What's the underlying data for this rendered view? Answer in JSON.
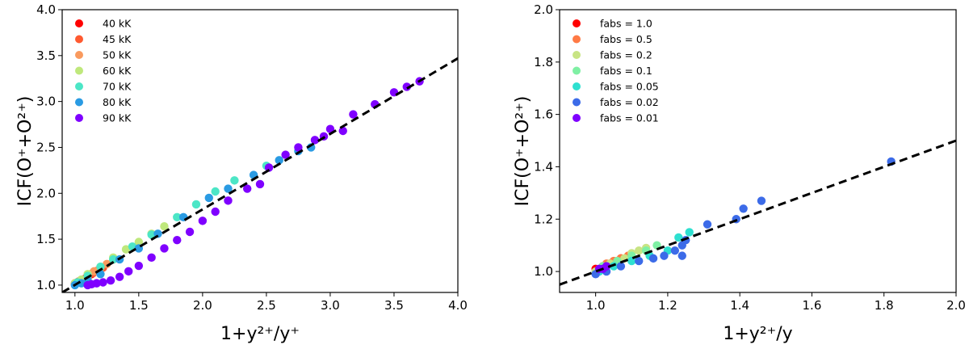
{
  "chart_data": [
    {
      "type": "scatter",
      "xlabel": "1+y²⁺/y⁺",
      "ylabel": "ICF(O⁺+O²⁺)",
      "xlim": [
        0.9,
        4.0
      ],
      "ylim": [
        0.92,
        4.0
      ],
      "xticks": [
        "1.0",
        "1.5",
        "2.0",
        "2.5",
        "3.0",
        "3.5",
        "4.0"
      ],
      "yticks": [
        "1.0",
        "1.5",
        "2.0",
        "2.5",
        "3.0",
        "3.5",
        "4.0"
      ],
      "grid": false,
      "legend_position": "top-left",
      "fit_line": {
        "style": "dashed",
        "color": "#000000",
        "from": [
          0.9,
          0.92
        ],
        "to": [
          4.0,
          3.47
        ]
      },
      "series": [
        {
          "name": "40 kK",
          "color": "#ff0000",
          "points": [
            [
              1.0,
              1.02
            ],
            [
              1.02,
              1.03
            ],
            [
              1.05,
              1.05
            ],
            [
              1.08,
              1.07
            ],
            [
              1.1,
              1.09
            ],
            [
              1.13,
              1.12
            ]
          ]
        },
        {
          "name": "45 kK",
          "color": "#ff5a30",
          "points": [
            [
              1.0,
              1.01
            ],
            [
              1.03,
              1.04
            ],
            [
              1.06,
              1.06
            ],
            [
              1.1,
              1.1
            ],
            [
              1.14,
              1.13
            ],
            [
              1.18,
              1.16
            ],
            [
              1.22,
              1.19
            ]
          ]
        },
        {
          "name": "50 kK",
          "color": "#f99a5e",
          "points": [
            [
              1.01,
              1.02
            ],
            [
              1.05,
              1.05
            ],
            [
              1.1,
              1.1
            ],
            [
              1.15,
              1.15
            ],
            [
              1.2,
              1.19
            ],
            [
              1.25,
              1.23
            ],
            [
              1.3,
              1.28
            ]
          ]
        },
        {
          "name": "60 kK",
          "color": "#bfe87c",
          "points": [
            [
              1.0,
              1.02
            ],
            [
              1.05,
              1.06
            ],
            [
              1.1,
              1.12
            ],
            [
              1.2,
              1.2
            ],
            [
              1.3,
              1.3
            ],
            [
              1.4,
              1.39
            ],
            [
              1.5,
              1.47
            ],
            [
              1.6,
              1.56
            ],
            [
              1.7,
              1.64
            ]
          ]
        },
        {
          "name": "70 kK",
          "color": "#4ce6c6",
          "points": [
            [
              1.02,
              1.03
            ],
            [
              1.1,
              1.1
            ],
            [
              1.2,
              1.2
            ],
            [
              1.3,
              1.28
            ],
            [
              1.45,
              1.42
            ],
            [
              1.6,
              1.55
            ],
            [
              1.8,
              1.74
            ],
            [
              1.95,
              1.88
            ],
            [
              2.1,
              2.02
            ],
            [
              2.25,
              2.14
            ],
            [
              2.5,
              2.3
            ]
          ]
        },
        {
          "name": "80 kK",
          "color": "#2a9be3",
          "points": [
            [
              1.0,
              1.0
            ],
            [
              1.05,
              1.02
            ],
            [
              1.1,
              1.05
            ],
            [
              1.2,
              1.12
            ],
            [
              1.35,
              1.28
            ],
            [
              1.5,
              1.4
            ],
            [
              1.65,
              1.56
            ],
            [
              1.85,
              1.74
            ],
            [
              2.05,
              1.95
            ],
            [
              2.2,
              2.05
            ],
            [
              2.4,
              2.2
            ],
            [
              2.6,
              2.36
            ],
            [
              2.75,
              2.46
            ],
            [
              2.85,
              2.5
            ]
          ]
        },
        {
          "name": "90 kK",
          "color": "#7f00ff",
          "points": [
            [
              1.1,
              1.0
            ],
            [
              1.13,
              1.01
            ],
            [
              1.17,
              1.02
            ],
            [
              1.22,
              1.03
            ],
            [
              1.28,
              1.05
            ],
            [
              1.35,
              1.09
            ],
            [
              1.42,
              1.15
            ],
            [
              1.5,
              1.21
            ],
            [
              1.6,
              1.3
            ],
            [
              1.7,
              1.4
            ],
            [
              1.8,
              1.49
            ],
            [
              1.9,
              1.58
            ],
            [
              2.0,
              1.7
            ],
            [
              2.1,
              1.8
            ],
            [
              2.2,
              1.92
            ],
            [
              2.35,
              2.05
            ],
            [
              2.45,
              2.1
            ],
            [
              2.52,
              2.28
            ],
            [
              2.65,
              2.42
            ],
            [
              2.75,
              2.5
            ],
            [
              2.88,
              2.58
            ],
            [
              2.95,
              2.62
            ],
            [
              3.0,
              2.7
            ],
            [
              3.1,
              2.68
            ],
            [
              3.18,
              2.86
            ],
            [
              3.35,
              2.97
            ],
            [
              3.5,
              3.1
            ],
            [
              3.6,
              3.16
            ],
            [
              3.7,
              3.22
            ]
          ]
        }
      ]
    },
    {
      "type": "scatter",
      "xlabel": "1+y²⁺/y",
      "ylabel": "ICF(O⁺+O²⁺)",
      "xlim": [
        0.9,
        2.0
      ],
      "ylim": [
        0.92,
        2.0
      ],
      "xticks": [
        "1.0",
        "1.2",
        "1.4",
        "1.6",
        "1.8",
        "2.0"
      ],
      "yticks": [
        "1.0",
        "1.2",
        "1.4",
        "1.6",
        "1.8",
        "2.0"
      ],
      "grid": false,
      "legend_position": "top-left",
      "fit_line": {
        "style": "dashed",
        "color": "#000000",
        "from": [
          0.9,
          0.95
        ],
        "to": [
          2.0,
          1.5
        ]
      },
      "series": [
        {
          "name": "fabs = 1.0",
          "color": "#ff0000",
          "points": [
            [
              1.0,
              1.01
            ],
            [
              1.02,
              1.02
            ],
            [
              1.04,
              1.03
            ],
            [
              1.06,
              1.04
            ],
            [
              1.07,
              1.05
            ]
          ]
        },
        {
          "name": "fabs = 0.5",
          "color": "#ff7a45",
          "points": [
            [
              1.01,
              1.01
            ],
            [
              1.03,
              1.03
            ],
            [
              1.05,
              1.04
            ],
            [
              1.07,
              1.05
            ],
            [
              1.09,
              1.06
            ]
          ]
        },
        {
          "name": "fabs = 0.2",
          "color": "#c8e484",
          "points": [
            [
              1.0,
              1.0
            ],
            [
              1.04,
              1.03
            ],
            [
              1.08,
              1.05
            ],
            [
              1.1,
              1.07
            ],
            [
              1.12,
              1.08
            ],
            [
              1.14,
              1.09
            ]
          ]
        },
        {
          "name": "fabs = 0.1",
          "color": "#7ff0a4",
          "points": [
            [
              1.02,
              1.02
            ],
            [
              1.06,
              1.04
            ],
            [
              1.1,
              1.06
            ],
            [
              1.14,
              1.08
            ],
            [
              1.17,
              1.1
            ]
          ]
        },
        {
          "name": "fabs = 0.05",
          "color": "#2ee0d0",
          "points": [
            [
              1.01,
              1.0
            ],
            [
              1.05,
              1.02
            ],
            [
              1.1,
              1.04
            ],
            [
              1.15,
              1.06
            ],
            [
              1.2,
              1.08
            ],
            [
              1.23,
              1.13
            ],
            [
              1.26,
              1.15
            ]
          ]
        },
        {
          "name": "fabs = 0.02",
          "color": "#3c6be8",
          "points": [
            [
              1.0,
              0.99
            ],
            [
              1.03,
              1.0
            ],
            [
              1.07,
              1.02
            ],
            [
              1.12,
              1.04
            ],
            [
              1.16,
              1.05
            ],
            [
              1.19,
              1.06
            ],
            [
              1.22,
              1.08
            ],
            [
              1.24,
              1.1
            ],
            [
              1.25,
              1.12
            ],
            [
              1.24,
              1.06
            ],
            [
              1.31,
              1.18
            ],
            [
              1.39,
              1.2
            ],
            [
              1.41,
              1.24
            ],
            [
              1.46,
              1.27
            ],
            [
              1.82,
              1.42
            ]
          ]
        },
        {
          "name": "fabs = 0.01",
          "color": "#7f00ff",
          "points": [
            [
              1.01,
              1.01
            ],
            [
              1.02,
              1.01
            ],
            [
              1.03,
              1.02
            ]
          ]
        }
      ]
    }
  ]
}
